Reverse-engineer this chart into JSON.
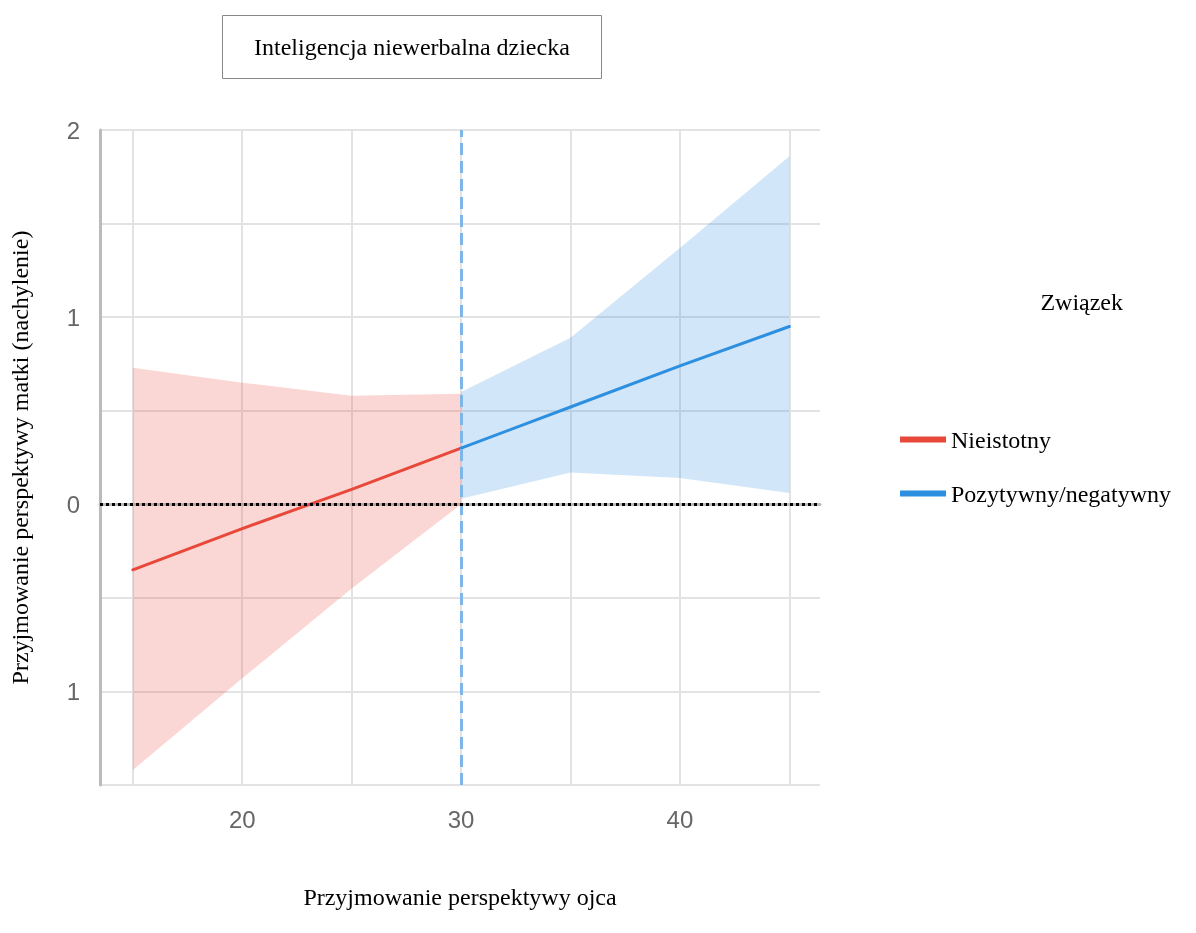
{
  "chart_data": {
    "type": "line",
    "title": "Inteligencja niewerbalna dziecka",
    "xlabel": "Przyjmowanie perspektywy ojca",
    "ylabel": "Przyjmowanie perspektywy matki (nachylenie)",
    "legend_title": "Związek",
    "xlim": [
      13.5,
      46.4
    ],
    "xticks": [
      {
        "value": 15,
        "label": null
      },
      20,
      {
        "value": 25,
        "label": null
      },
      30,
      {
        "value": 35,
        "label": null
      },
      40,
      {
        "value": 45,
        "label": null
      }
    ],
    "ylim": [
      -1.5,
      2
    ],
    "yticks": [
      {
        "value": -1.5,
        "label": null
      },
      {
        "value": -1,
        "label": "1"
      },
      {
        "value": -0.5,
        "label": null
      },
      0,
      {
        "value": 0.5,
        "label": null
      },
      1,
      {
        "value": 1.5,
        "label": null
      },
      2
    ],
    "grid": true,
    "legend": "right",
    "marker": "none",
    "line_style": "solid",
    "series": [
      {
        "name": "Nieistotny",
        "color": "#e8483a",
        "x": [
          15,
          20,
          25,
          30
        ],
        "values": [
          -0.35,
          -0.13,
          0.08,
          0.3
        ],
        "lower": [
          -1.42,
          -0.93,
          -0.45,
          0.0
        ],
        "upper": [
          0.73,
          0.65,
          0.58,
          0.59
        ]
      },
      {
        "name": "Pozytywny/negatywny",
        "color": "#2c8fe0",
        "x": [
          30,
          35,
          40,
          45
        ],
        "values": [
          0.3,
          0.52,
          0.74,
          0.95
        ],
        "lower": [
          0.03,
          0.17,
          0.14,
          0.06
        ],
        "upper": [
          0.6,
          0.89,
          1.37,
          1.86
        ]
      }
    ],
    "ref_lines": [
      {
        "axis": "x",
        "value": 30,
        "color": "#7fb6ea",
        "line_style": "dashed"
      },
      {
        "axis": "y",
        "value": 0,
        "color": "#000000",
        "line_style": "dotted"
      }
    ]
  }
}
